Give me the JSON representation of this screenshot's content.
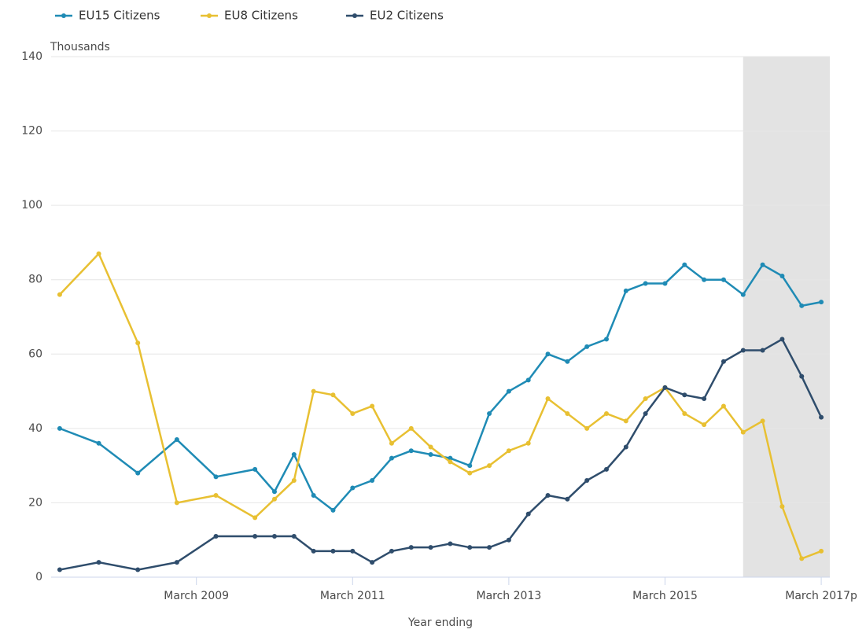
{
  "chart_data": {
    "type": "line",
    "y_axis_label": "Thousands",
    "x_axis_label": "Year ending",
    "x": [
      2007.25,
      2007.75,
      2008.25,
      2008.75,
      2009.25,
      2009.75,
      2010,
      2010.25,
      2010.5,
      2010.75,
      2011,
      2011.25,
      2011.5,
      2011.75,
      2012,
      2012.25,
      2012.5,
      2012.75,
      2013,
      2013.25,
      2013.5,
      2013.75,
      2014,
      2014.25,
      2014.5,
      2014.75,
      2015,
      2015.25,
      2015.5,
      2015.75,
      2016,
      2016.25,
      2016.5,
      2016.75,
      2017
    ],
    "series": [
      {
        "name": "EU15 Citizens",
        "color": "#1f8bb5",
        "values": [
          40,
          36,
          28,
          37,
          27,
          29,
          23,
          33,
          22,
          18,
          24,
          26,
          32,
          34,
          33,
          32,
          30,
          44,
          50,
          53,
          60,
          58,
          62,
          64,
          77,
          79,
          79,
          84,
          80,
          80,
          76,
          84,
          81,
          73,
          74
        ]
      },
      {
        "name": "EU8 Citizens",
        "color": "#e8c032",
        "values": [
          76,
          87,
          63,
          20,
          22,
          16,
          21,
          26,
          50,
          49,
          44,
          46,
          36,
          40,
          35,
          31,
          28,
          30,
          34,
          36,
          48,
          44,
          40,
          44,
          42,
          48,
          51,
          44,
          41,
          46,
          39,
          42,
          19,
          5,
          7
        ]
      },
      {
        "name": "EU2 Citizens",
        "color": "#2f4d6c",
        "values": [
          2,
          4,
          2,
          4,
          11,
          11,
          11,
          11,
          7,
          7,
          7,
          4,
          7,
          8,
          8,
          9,
          8,
          8,
          10,
          17,
          22,
          21,
          26,
          29,
          35,
          44,
          51,
          49,
          48,
          58,
          61,
          61,
          64,
          54,
          43
        ]
      }
    ],
    "xlim": [
      2007.14,
      2017.11
    ],
    "xticks": [
      {
        "value": 2009,
        "label": "March 2009"
      },
      {
        "value": 2011,
        "label": "March 2011"
      },
      {
        "value": 2013,
        "label": "March 2013"
      },
      {
        "value": 2015,
        "label": "March 2015"
      },
      {
        "value": 2017,
        "label": "March 2017p"
      }
    ],
    "ylim": [
      0,
      140
    ],
    "yticks": [
      0,
      20,
      40,
      60,
      80,
      100,
      120,
      140
    ],
    "grid": true,
    "legend": "top",
    "highlight_xlim": [
      2016,
      2017.11
    ],
    "highlight_color": "#e3e3e3"
  }
}
